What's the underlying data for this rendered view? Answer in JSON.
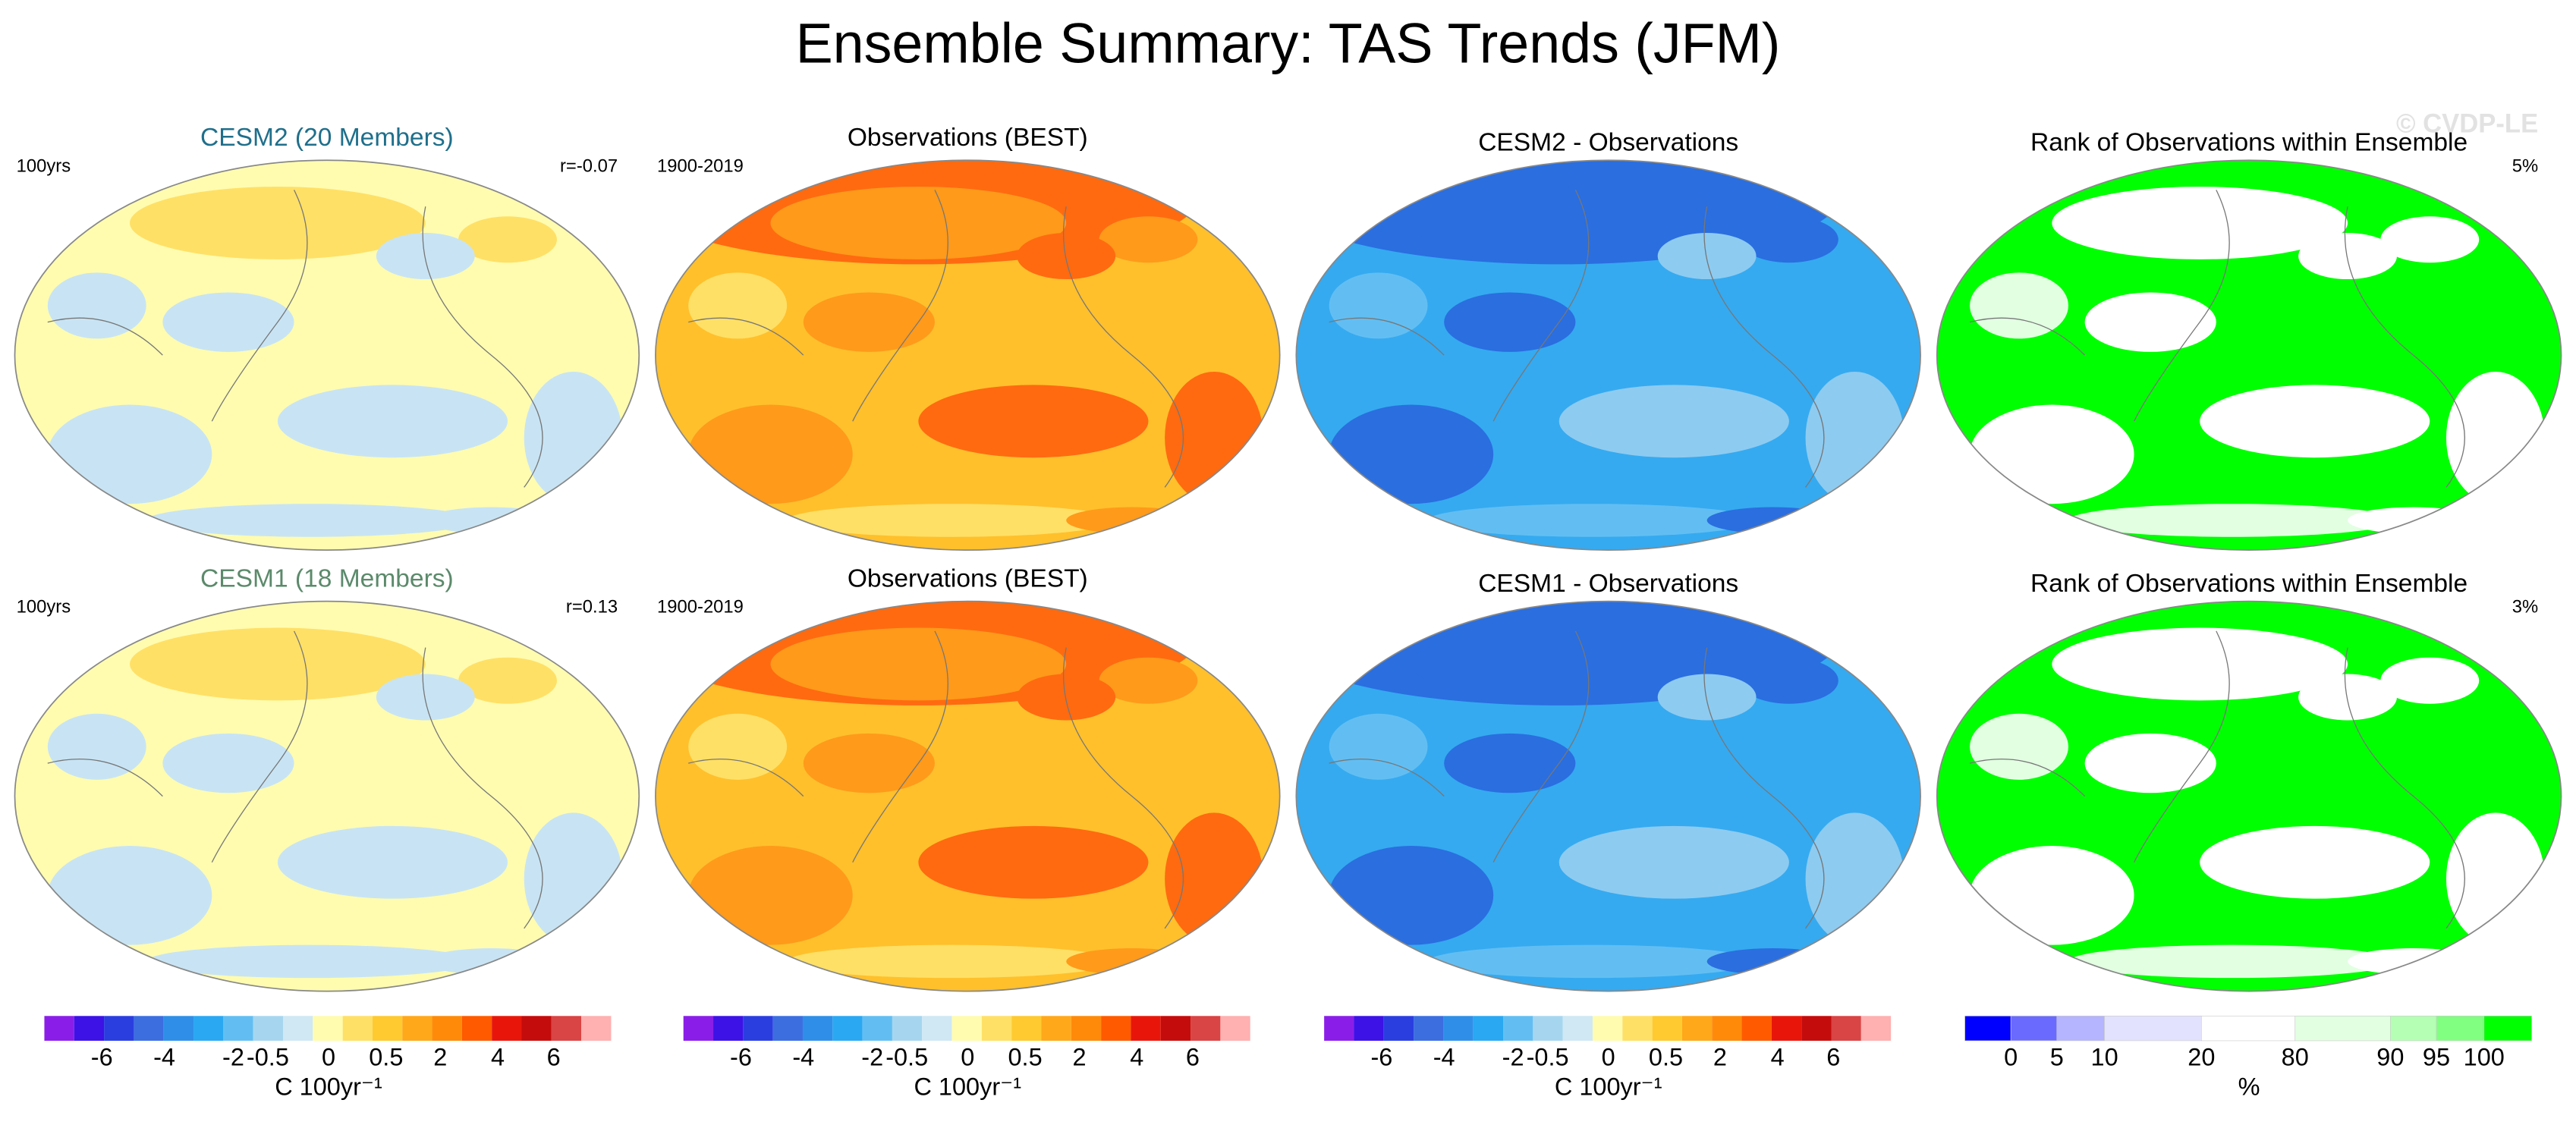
{
  "title": "Ensemble Summary: TAS Trends (JFM)",
  "watermark": "© CVDP-LE",
  "panels": [
    {
      "title": "CESM2 (20 Members)",
      "title_color": "#1f6f8b",
      "left_label": "100yrs",
      "right_label": "r=-0.07"
    },
    {
      "title": "Observations (BEST)",
      "title_color": "#000000",
      "left_label": "1900-2019"
    },
    {
      "title": "CESM2 - Observations",
      "title_color": "#000000"
    },
    {
      "title": "Rank of Observations within Ensemble",
      "title_color": "#000000",
      "right_label": "5%"
    },
    {
      "title": "CESM1 (18 Members)",
      "title_color": "#5b8a6b",
      "left_label": "100yrs",
      "right_label": "r=0.13"
    },
    {
      "title": "Observations (BEST)",
      "title_color": "#000000",
      "left_label": "1900-2019"
    },
    {
      "title": "CESM1 - Observations",
      "title_color": "#000000"
    },
    {
      "title": "Rank of Observations within Ensemble",
      "title_color": "#000000",
      "right_label": "3%"
    }
  ],
  "colorbars": [
    {
      "labels": [
        -6,
        -4,
        -2,
        -0.5,
        0,
        0.5,
        2,
        4,
        6
      ],
      "unit": "C 100yr⁻¹",
      "colors": [
        "#8a1ee8",
        "#3c12e6",
        "#2a3ee0",
        "#3c6ee0",
        "#2f8fe8",
        "#2aa8f2",
        "#62bef2",
        "#a6d6ef",
        "#cfe8f4",
        "#fffcb0",
        "#ffe066",
        "#ffca30",
        "#ffa81a",
        "#ff8a0a",
        "#ff5a00",
        "#e8160a",
        "#c40c0c",
        "#d94444",
        "#ffb0b0"
      ]
    },
    {
      "labels": [
        -6,
        -4,
        -2,
        -0.5,
        0,
        0.5,
        2,
        4,
        6
      ],
      "unit": "C 100yr⁻¹",
      "colors": [
        "#8a1ee8",
        "#3c12e6",
        "#2a3ee0",
        "#3c6ee0",
        "#2f8fe8",
        "#2aa8f2",
        "#62bef2",
        "#a6d6ef",
        "#cfe8f4",
        "#fffcb0",
        "#ffe066",
        "#ffca30",
        "#ffa81a",
        "#ff8a0a",
        "#ff5a00",
        "#e8160a",
        "#c40c0c",
        "#d94444",
        "#ffb0b0"
      ]
    },
    {
      "labels": [
        -6,
        -4,
        -2,
        -0.5,
        0,
        0.5,
        2,
        4,
        6
      ],
      "unit": "C 100yr⁻¹",
      "colors": [
        "#8a1ee8",
        "#3c12e6",
        "#2a3ee0",
        "#3c6ee0",
        "#2f8fe8",
        "#2aa8f2",
        "#62bef2",
        "#a6d6ef",
        "#cfe8f4",
        "#fffcb0",
        "#ffe066",
        "#ffca30",
        "#ffa81a",
        "#ff8a0a",
        "#ff5a00",
        "#e8160a",
        "#c40c0c",
        "#d94444",
        "#ffb0b0"
      ]
    },
    {
      "labels": [
        0,
        5,
        10,
        20,
        80,
        90,
        95,
        100
      ],
      "unit": "%",
      "colors": [
        "#0000ff",
        "#6a6aff",
        "#b4b4ff",
        "#e2e2ff",
        "#ffffff",
        "#e2ffe2",
        "#b4ffb4",
        "#80ff80",
        "#00ff00"
      ]
    }
  ]
}
